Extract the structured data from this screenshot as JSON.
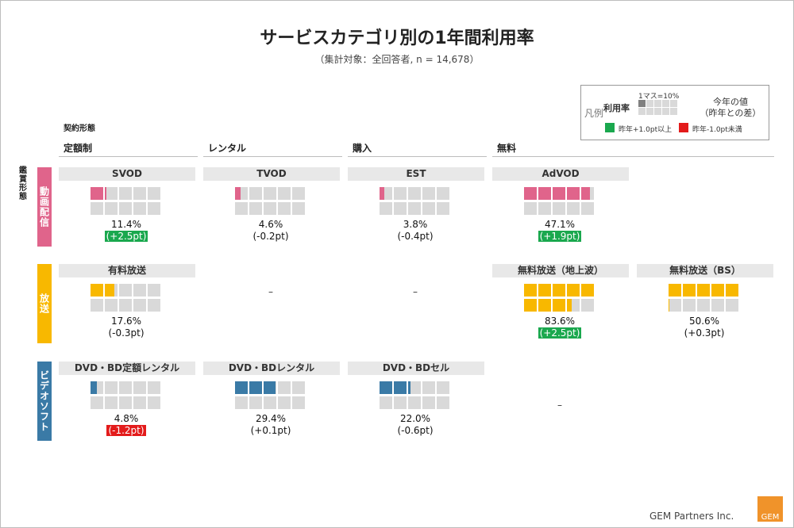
{
  "title": "サービスカテゴリ別の1年間利用率",
  "subtitle": "（集計対象：全回答者, n = 14,678）",
  "legend": {
    "label": "凡例",
    "rate_label": "利用率",
    "unit_label": "1マス=10%",
    "value_label": "今年の値",
    "diff_label": "（昨年との差）",
    "up_label": "昨年+1.0pt以上",
    "down_label": "昨年-1.0pt未満",
    "up_color": "#1aa84e",
    "down_color": "#e31b1b",
    "sample_color": "#808080"
  },
  "axis": {
    "contract_label": "契約形態",
    "viewing_label": "鑑賞形態",
    "columns": [
      "定額制",
      "レンタル",
      "購入",
      "無料"
    ],
    "rows": [
      {
        "label": "動画配信",
        "color": "#e0648b"
      },
      {
        "label": "放送",
        "color": "#f8b800"
      },
      {
        "label": "ビデオソフト",
        "color": "#3a7aa6"
      }
    ],
    "dash": "–"
  },
  "chart_data": {
    "type": "table",
    "title": "サービスカテゴリ別の1年間利用率",
    "unit": "1マス=10%",
    "cells": [
      {
        "row": 0,
        "col": 0,
        "name": "SVOD",
        "value": 11.4,
        "value_label": "11.4%",
        "diff": 2.5,
        "diff_label": "(+2.5pt)",
        "flag": "up"
      },
      {
        "row": 0,
        "col": 1,
        "name": "TVOD",
        "value": 4.6,
        "value_label": "4.6%",
        "diff": -0.2,
        "diff_label": "(-0.2pt)",
        "flag": "none"
      },
      {
        "row": 0,
        "col": 2,
        "name": "EST",
        "value": 3.8,
        "value_label": "3.8%",
        "diff": -0.4,
        "diff_label": "(-0.4pt)",
        "flag": "none"
      },
      {
        "row": 0,
        "col": 3,
        "name": "AdVOD",
        "value": 47.1,
        "value_label": "47.1%",
        "diff": 1.9,
        "diff_label": "(+1.9pt)",
        "flag": "up"
      },
      {
        "row": 1,
        "col": 0,
        "name": "有料放送",
        "value": 17.6,
        "value_label": "17.6%",
        "diff": -0.3,
        "diff_label": "(-0.3pt)",
        "flag": "none"
      },
      {
        "row": 1,
        "col": 3,
        "name": "無料放送（地上波）",
        "value": 83.6,
        "value_label": "83.6%",
        "diff": 2.5,
        "diff_label": "(+2.5pt)",
        "flag": "up"
      },
      {
        "row": 1,
        "col": 4,
        "name": "無料放送（BS）",
        "value": 50.6,
        "value_label": "50.6%",
        "diff": 0.3,
        "diff_label": "(+0.3pt)",
        "flag": "none"
      },
      {
        "row": 2,
        "col": 0,
        "name": "DVD・BD定額レンタル",
        "value": 4.8,
        "value_label": "4.8%",
        "diff": -1.2,
        "diff_label": "(-1.2pt)",
        "flag": "down"
      },
      {
        "row": 2,
        "col": 1,
        "name": "DVD・BDレンタル",
        "value": 29.4,
        "value_label": "29.4%",
        "diff": 0.1,
        "diff_label": "(+0.1pt)",
        "flag": "none"
      },
      {
        "row": 2,
        "col": 2,
        "name": "DVD・BDセル",
        "value": 22.0,
        "value_label": "22.0%",
        "diff": -0.6,
        "diff_label": "(-0.6pt)",
        "flag": "none"
      }
    ],
    "empty_cells": [
      {
        "row": 1,
        "col": 1
      },
      {
        "row": 1,
        "col": 2
      },
      {
        "row": 2,
        "col": 3
      }
    ]
  },
  "footer": {
    "company": "GEM Partners Inc.",
    "logo_text": "GEM"
  }
}
